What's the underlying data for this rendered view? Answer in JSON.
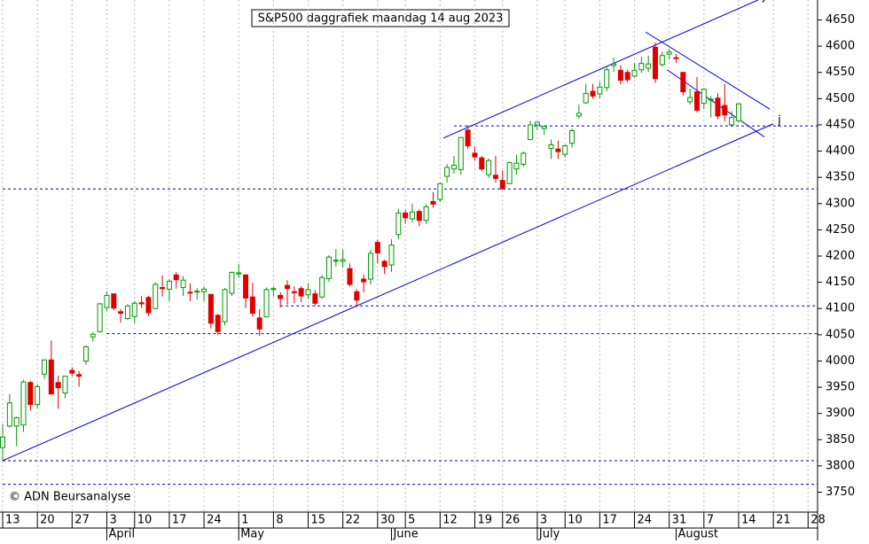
{
  "chart_data": {
    "type": "candlestick",
    "title": "S&P500 daggrafiek maandag 14 aug 2023",
    "copyright": "© ADN Beursanalyse",
    "categories": [
      "13",
      null,
      null,
      null,
      null,
      "20",
      null,
      null,
      null,
      null,
      "27",
      null,
      null,
      null,
      null,
      "3",
      null,
      null,
      null,
      "10",
      null,
      null,
      null,
      null,
      "17",
      null,
      null,
      null,
      null,
      "24",
      null,
      null,
      null,
      null,
      "1",
      null,
      null,
      null,
      null,
      "8",
      null,
      null,
      null,
      null,
      "15",
      null,
      null,
      null,
      null,
      "22",
      null,
      null,
      null,
      null,
      "30",
      null,
      null,
      null,
      "5",
      null,
      null,
      null,
      null,
      "12",
      null,
      null,
      null,
      null,
      "19",
      null,
      null,
      null,
      "26",
      null,
      null,
      null,
      null,
      "3",
      null,
      null,
      null,
      "10",
      null,
      null,
      null,
      null,
      "17",
      null,
      null,
      null,
      null,
      "24",
      null,
      null,
      null,
      null,
      "31",
      null,
      null,
      null,
      null,
      "7",
      null,
      null,
      null,
      null,
      "14",
      null,
      null,
      null,
      null,
      "21",
      null,
      null,
      null,
      null,
      "28",
      null
    ],
    "months": [
      {
        "label": "April",
        "at": 15
      },
      {
        "label": "May",
        "at": 34
      },
      {
        "label": "June",
        "at": 56
      },
      {
        "label": "July",
        "at": 77
      },
      {
        "label": "August",
        "at": 97
      }
    ],
    "open": [
      3835,
      3876,
      3876,
      3878,
      3959,
      3917,
      3975,
      4002,
      3959,
      3939,
      3982,
      3974,
      4000,
      4046,
      4056,
      4102,
      4128,
      4094,
      4081,
      4085,
      4111,
      4121,
      4100,
      4140,
      4137,
      4164,
      4140,
      4131,
      4132,
      4132,
      4127,
      4087,
      4075,
      4129,
      4166,
      4164,
      4122,
      4082,
      4084,
      4136,
      4125,
      4144,
      4132,
      4138,
      4126,
      4128,
      4122,
      4157,
      4191,
      4190,
      4176,
      4132,
      4156,
      4156,
      4226,
      4190,
      4183,
      4241,
      4282,
      4271,
      4285,
      4268,
      4304,
      4308,
      4352,
      4366,
      4365,
      4440,
      4396,
      4387,
      4355,
      4354,
      4344,
      4338,
      4366,
      4375,
      4422,
      4450,
      4443,
      4405,
      4404,
      4394,
      4415,
      4467,
      4492,
      4514,
      4509,
      4521,
      4563,
      4554,
      4550,
      4543,
      4555,
      4558,
      4598,
      4565,
      4585,
      4578,
      4550,
      4494,
      4513,
      4491,
      4498,
      4501,
      4487,
      4450,
      4458,
      null,
      null,
      null,
      null,
      null,
      null,
      null,
      null,
      null,
      null,
      null
    ],
    "high": [
      3880,
      3937,
      3894,
      3964,
      3962,
      3956,
      4003,
      4039,
      3972,
      3972,
      3988,
      3981,
      4030,
      4055,
      4110,
      4133,
      4128,
      4099,
      4108,
      4114,
      4124,
      4124,
      4150,
      4163,
      4156,
      4169,
      4162,
      4148,
      4139,
      4142,
      4127,
      4090,
      4139,
      4170,
      4185,
      4165,
      4149,
      4099,
      4140,
      4142,
      4131,
      4154,
      4142,
      4143,
      4148,
      4135,
      4164,
      4202,
      4213,
      4212,
      4186,
      4137,
      4165,
      4212,
      4231,
      4193,
      4232,
      4290,
      4288,
      4300,
      4289,
      4299,
      4322,
      4340,
      4375,
      4391,
      4427,
      4449,
      4409,
      4391,
      4386,
      4391,
      4363,
      4380,
      4393,
      4399,
      4458,
      4456,
      4449,
      4422,
      4420,
      4413,
      4443,
      4489,
      4528,
      4528,
      4532,
      4563,
      4578,
      4564,
      4555,
      4568,
      4580,
      4582,
      4607,
      4590,
      4595,
      4585,
      4551,
      4519,
      4541,
      4520,
      4505,
      4510,
      4528,
      4476,
      4490,
      null,
      null,
      null,
      null,
      null,
      null,
      null,
      null,
      null,
      null,
      null
    ],
    "low": [
      3809,
      3873,
      3838,
      3865,
      3905,
      3910,
      3966,
      3937,
      3909,
      3929,
      3971,
      3951,
      3993,
      4037,
      4054,
      4096,
      4097,
      4073,
      4078,
      4072,
      4101,
      4086,
      4099,
      4123,
      4114,
      4138,
      4124,
      4114,
      4117,
      4114,
      4062,
      4050,
      4068,
      4124,
      4158,
      4101,
      4085,
      4048,
      4084,
      4123,
      4102,
      4108,
      4110,
      4112,
      4118,
      4106,
      4119,
      4151,
      4180,
      4178,
      4142,
      4103,
      4131,
      4146,
      4186,
      4166,
      4170,
      4232,
      4262,
      4264,
      4257,
      4261,
      4292,
      4303,
      4340,
      4357,
      4355,
      4404,
      4382,
      4362,
      4349,
      4340,
      4327,
      4337,
      4355,
      4370,
      4421,
      4440,
      4431,
      4385,
      4385,
      4388,
      4407,
      4462,
      4490,
      4500,
      4500,
      4514,
      4551,
      4527,
      4531,
      4540,
      4549,
      4551,
      4530,
      4561,
      4575,
      4568,
      4506,
      4489,
      4474,
      4480,
      4464,
      4461,
      4457,
      4448,
      4454,
      null,
      null,
      null,
      null,
      null,
      null,
      null,
      null,
      null,
      null,
      null
    ],
    "close": [
      3855,
      3920,
      3892,
      3960,
      3917,
      3951,
      4002,
      3937,
      3949,
      3971,
      3977,
      3971,
      4027,
      4051,
      4109,
      4125,
      4101,
      4091,
      4105,
      4110,
      4109,
      4092,
      4146,
      4138,
      4152,
      4155,
      4154,
      4130,
      4133,
      4137,
      4072,
      4056,
      4136,
      4169,
      4168,
      4120,
      4091,
      4061,
      4136,
      4138,
      4119,
      4138,
      4131,
      4124,
      4136,
      4110,
      4159,
      4198,
      4192,
      4193,
      4146,
      4116,
      4151,
      4205,
      4206,
      4180,
      4221,
      4282,
      4273,
      4284,
      4268,
      4294,
      4299,
      4338,
      4369,
      4373,
      4426,
      4410,
      4389,
      4366,
      4382,
      4348,
      4328,
      4378,
      4377,
      4396,
      4450,
      4455,
      4447,
      4412,
      4399,
      4410,
      4439,
      4472,
      4510,
      4505,
      4522,
      4555,
      4566,
      4535,
      4536,
      4554,
      4567,
      4566,
      4538,
      4582,
      4589,
      4577,
      4513,
      4502,
      4478,
      4518,
      4499,
      4467,
      4469,
      4464,
      4490,
      null,
      null,
      null,
      null,
      null,
      null,
      null,
      null,
      null,
      null,
      null
    ],
    "up_color": "#009900",
    "down_color": "#e00000",
    "hlines": [
      {
        "value": 4448,
        "from": 65
      },
      {
        "value": 4328,
        "from": 0
      },
      {
        "value": 4105,
        "from": 40
      },
      {
        "value": 4052,
        "from": 15
      },
      {
        "value": 3810,
        "from": 0
      },
      {
        "value": 3765,
        "from": 0
      }
    ],
    "trendlines": [
      {
        "x0": 0,
        "y0": 3810,
        "x1": 111,
        "y1": 4452,
        "label": "j"
      },
      {
        "x0": 63.5,
        "y0": 4425,
        "x1": 108.8,
        "y1": 4688,
        "label": "j"
      },
      {
        "x0": 92.6,
        "y0": 4627,
        "x1": 110.5,
        "y1": 4480
      },
      {
        "x0": 95.7,
        "y0": 4555,
        "x1": 109.7,
        "y1": 4427
      }
    ],
    "line_color": "#0000cc",
    "ylim": [
      3712,
      4688
    ],
    "yticks": [
      3750,
      3800,
      3850,
      3900,
      3950,
      4000,
      4050,
      4100,
      4150,
      4200,
      4250,
      4300,
      4350,
      4400,
      4450,
      4500,
      4550,
      4600,
      4650
    ],
    "grid": true
  }
}
